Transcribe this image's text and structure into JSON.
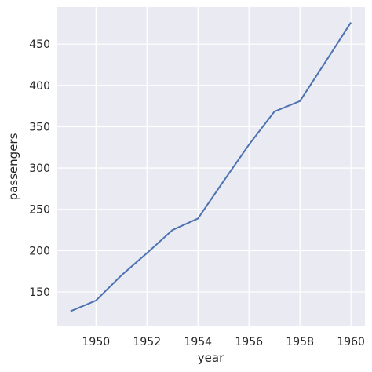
{
  "chart_data": {
    "type": "line",
    "xlabel": "year",
    "ylabel": "passengers",
    "x": [
      1949,
      1950,
      1951,
      1952,
      1953,
      1954,
      1955,
      1956,
      1957,
      1958,
      1959,
      1960
    ],
    "series": [
      {
        "values": [
          126.7,
          139.7,
          170.2,
          197.0,
          225.0,
          238.9,
          284.0,
          328.3,
          368.4,
          381.0,
          428.3,
          476.2
        ]
      }
    ],
    "xlim": [
      1948.45,
      1960.55
    ],
    "ylim": [
      108.25,
      494.75
    ],
    "x_ticks": [
      1950,
      1952,
      1954,
      1956,
      1958,
      1960
    ],
    "y_ticks": [
      150,
      200,
      250,
      300,
      350,
      400,
      450
    ],
    "grid": true,
    "colors": {
      "background": "#eaeaf2",
      "grid": "#ffffff",
      "line": "#4c72b0"
    }
  }
}
